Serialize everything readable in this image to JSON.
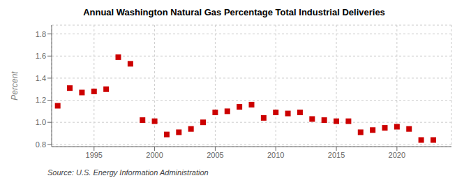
{
  "chart_data": {
    "type": "scatter",
    "title": "Annual Washington Natural Gas Percentage Total Industrial Deliveries",
    "y_label": "Percent",
    "annotation": "Source: U.S. Energy Information Administration",
    "x": [
      1992,
      1993,
      1994,
      1995,
      1996,
      1997,
      1998,
      1999,
      2000,
      2001,
      2002,
      2003,
      2004,
      2005,
      2006,
      2007,
      2008,
      2009,
      2010,
      2011,
      2012,
      2013,
      2014,
      2015,
      2016,
      2017,
      2018,
      2019,
      2020,
      2021,
      2022,
      2023
    ],
    "values": [
      1.15,
      1.31,
      1.27,
      1.28,
      1.3,
      1.59,
      1.53,
      1.02,
      1.01,
      0.89,
      0.91,
      0.94,
      1.0,
      1.09,
      1.1,
      1.14,
      1.16,
      1.04,
      1.09,
      1.08,
      1.09,
      1.03,
      1.02,
      1.01,
      1.01,
      0.91,
      0.93,
      0.95,
      0.96,
      0.94,
      0.84,
      0.84
    ],
    "color": "#cc0000",
    "marker": "square",
    "xlim": [
      1991.5,
      2024.5
    ],
    "ylim": [
      0.78,
      1.88
    ],
    "xticks": [
      1995,
      2000,
      2005,
      2010,
      2015,
      2020
    ],
    "yticks": [
      0.8,
      {
        "value": 1.0,
        "label": "1.0"
      },
      1.2,
      1.4,
      1.6,
      1.8
    ],
    "grid": true
  }
}
